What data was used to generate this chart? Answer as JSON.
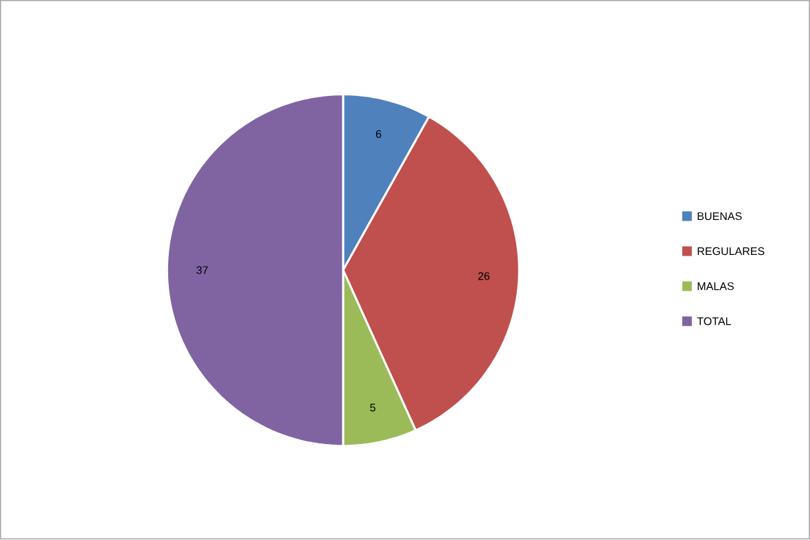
{
  "chart_data": {
    "type": "pie",
    "categories": [
      "BUENAS",
      "REGULARES",
      "MALAS",
      "TOTAL"
    ],
    "values": [
      6,
      26,
      5,
      37
    ],
    "colors": [
      "#4f81bd",
      "#c0504d",
      "#9bbb59",
      "#8064a2"
    ],
    "data_labels": true,
    "legend": "right"
  }
}
